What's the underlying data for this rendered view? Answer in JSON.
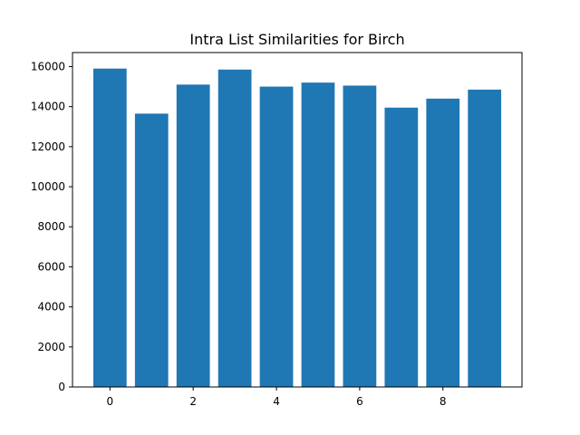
{
  "chart_data": {
    "type": "bar",
    "title": "Intra List Similarities for Birch",
    "xlabel": "",
    "ylabel": "",
    "x": [
      0,
      1,
      2,
      3,
      4,
      5,
      6,
      7,
      8,
      9
    ],
    "values": [
      15900,
      13650,
      15100,
      15850,
      15000,
      15200,
      15050,
      13950,
      14400,
      14850
    ],
    "xlim": [
      -0.9,
      9.9
    ],
    "ylim": [
      0,
      16700
    ],
    "xticks": [
      0,
      2,
      4,
      6,
      8
    ],
    "yticks": [
      0,
      2000,
      4000,
      6000,
      8000,
      10000,
      12000,
      14000,
      16000
    ],
    "bar_color": "#1f77b4",
    "grid": false,
    "legend": "none"
  }
}
